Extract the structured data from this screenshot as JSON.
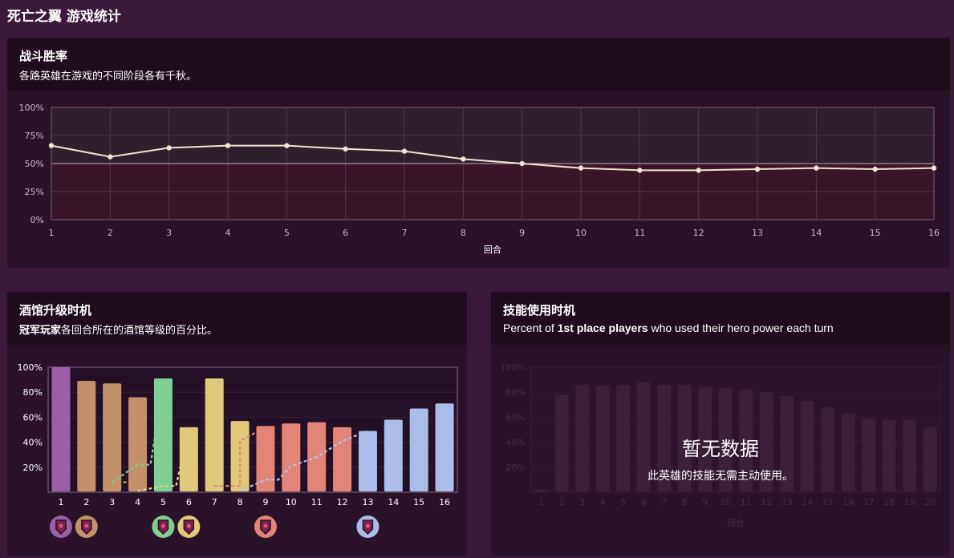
{
  "page": {
    "title": "死亡之翼 游戏统计"
  },
  "winrate": {
    "title": "战斗胜率",
    "subtitle": "各路英雄在游戏的不同阶段各有千秋。",
    "chart_data": {
      "type": "line",
      "title": "战斗胜率",
      "xlabel": "回合",
      "ylabel": "",
      "x": [
        1,
        2,
        3,
        4,
        5,
        6,
        7,
        8,
        9,
        10,
        11,
        12,
        13,
        14,
        15,
        16
      ],
      "series": [
        {
          "values": [
            66,
            56,
            64,
            66,
            66,
            63,
            61,
            54,
            50,
            46,
            44,
            44,
            45,
            46,
            45,
            46
          ]
        }
      ],
      "ylim": [
        0,
        100
      ],
      "yticks": [
        "0%",
        "25%",
        "50%",
        "75%",
        "100%"
      ],
      "reference_line": 50,
      "grid": true,
      "colors": {
        "line": "#f3e4d0",
        "upper_band": "#2e1f2d",
        "lower_band": "#3a1528"
      }
    }
  },
  "tavern": {
    "title": "酒馆升级时机",
    "subtitle_bold": "冠军玩家",
    "subtitle_rest": "各回合所在的酒馆等级的百分比。",
    "chart_data": {
      "type": "bar",
      "categories": [
        "1",
        "2",
        "3",
        "4",
        "5",
        "6",
        "7",
        "8",
        "9",
        "10",
        "11",
        "12",
        "13",
        "14",
        "15",
        "16"
      ],
      "series": [
        {
          "values": [
            100,
            89,
            87,
            76,
            91,
            52,
            91,
            57,
            53,
            55,
            56,
            52,
            49,
            58,
            67,
            71
          ]
        }
      ],
      "overlay_lines": [
        {
          "color": "#c79a6a",
          "points": [
            [
              3,
              8
            ],
            [
              4,
              8
            ]
          ]
        },
        {
          "color": "#7fcf95",
          "points": [
            [
              3,
              8
            ],
            [
              4,
              22
            ],
            [
              4.5,
              22
            ],
            [
              5,
              86
            ]
          ]
        },
        {
          "color": "#e6d07c",
          "points": [
            [
              4,
              1
            ],
            [
              5,
              5
            ],
            [
              5.5,
              5
            ],
            [
              6,
              50
            ]
          ]
        },
        {
          "color": "#e8857a",
          "points": [
            [
              7,
              5
            ],
            [
              8,
              5
            ],
            [
              8,
              41
            ],
            [
              9,
              52
            ]
          ]
        },
        {
          "color": "#b8c4e8",
          "points": [
            [
              8,
              1
            ],
            [
              9,
              10
            ],
            [
              9.5,
              10
            ],
            [
              10,
              21
            ],
            [
              11,
              28
            ],
            [
              12,
              41
            ],
            [
              13,
              49
            ]
          ]
        }
      ],
      "ylim": [
        0,
        100
      ],
      "yticks": [
        "20%",
        "40%",
        "60%",
        "80%",
        "100%"
      ],
      "bar_colors": [
        "#9b5fa8",
        "#c4916a",
        "#c4916a",
        "#c4916a",
        "#7fcf95",
        "#e0c97a",
        "#e0c97a",
        "#e0c97a",
        "#e38479",
        "#e38479",
        "#e38479",
        "#e38479",
        "#a9bde8",
        "#a9bde8",
        "#a9bde8",
        "#a9bde8"
      ],
      "tier_badges": [
        {
          "turn": 1,
          "color": "#9b5fa8",
          "icon": "tier-2-badge-icon"
        },
        {
          "turn": 2,
          "color": "#c4916a",
          "icon": "tier-3-badge-icon"
        },
        {
          "turn": 5,
          "color": "#7fcf95",
          "icon": "tier-4-badge-icon"
        },
        {
          "turn": 6,
          "color": "#e0c97a",
          "icon": "tier-4-badge-icon"
        },
        {
          "turn": 9,
          "color": "#e38479",
          "icon": "tier-5-badge-icon"
        },
        {
          "turn": 13,
          "color": "#a9bde8",
          "icon": "tier-6-badge-icon"
        }
      ]
    }
  },
  "heropower": {
    "title": "技能使用时机",
    "subtitle_pre": "Percent of ",
    "subtitle_bold": "1st place players",
    "subtitle_post": " who used their hero power each turn",
    "no_data_title": "暂无数据",
    "no_data_sub": "此英雄的技能无需主动使用。",
    "chart_data": {
      "type": "bar",
      "xlabel": "回合",
      "categories": [
        "1",
        "2",
        "3",
        "4",
        "5",
        "6",
        "7",
        "8",
        "9",
        "10",
        "11",
        "12",
        "13",
        "14",
        "15",
        "16",
        "17",
        "18",
        "19",
        "20"
      ],
      "series": [
        {
          "values": [
            2,
            78,
            86,
            85,
            86,
            88,
            86,
            86,
            84,
            83,
            82,
            80,
            77,
            73,
            68,
            63,
            59,
            58,
            58,
            52
          ]
        }
      ],
      "ylim": [
        0,
        100
      ],
      "yticks": [
        "20%",
        "40%",
        "60%",
        "80%",
        "100%"
      ],
      "dimmed": true
    }
  }
}
